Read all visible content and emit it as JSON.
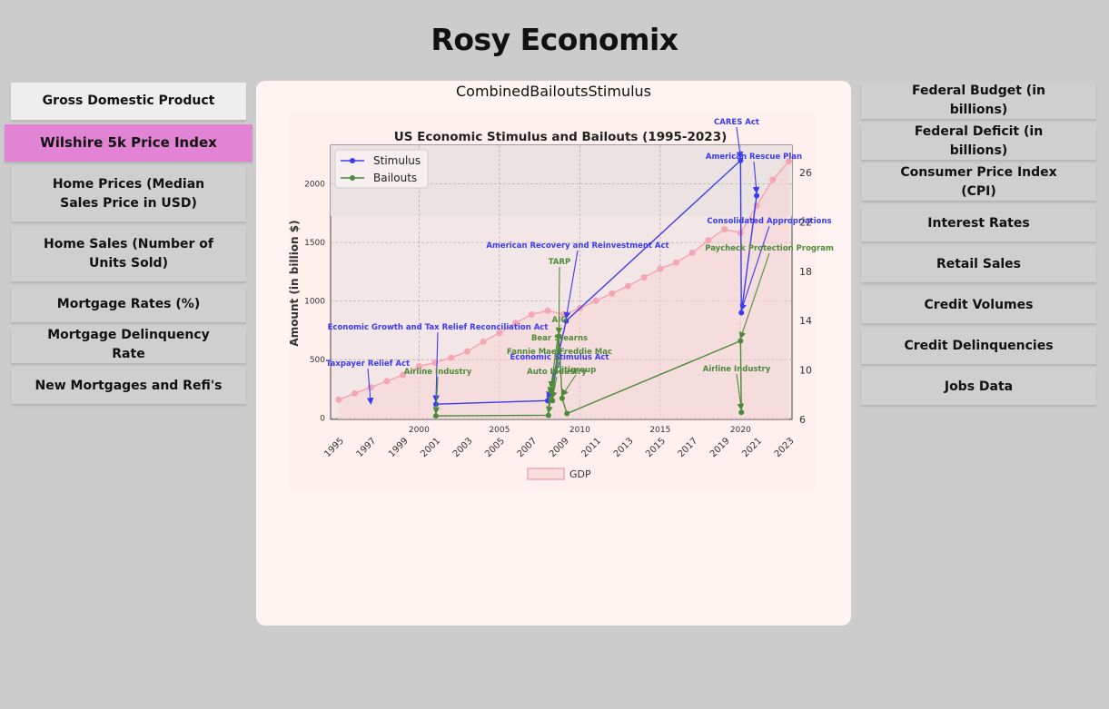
{
  "app": {
    "title": "Rosy Economix"
  },
  "left_nav": [
    "Gross Domestic Product",
    "Wilshire 5k Price Index",
    "Home Prices (Median Sales Price in USD)",
    "Home Sales (Number of Units Sold)",
    "Mortgage Rates (%)",
    "Mortgage Delinquency Rate",
    "New Mortgages and Refi's"
  ],
  "right_nav": [
    "Federal Budget (in billions)",
    "Federal Deficit (in billions)",
    "Consumer Price Index (CPI)",
    "Interest Rates",
    "Retail Sales",
    "Credit Volumes",
    "Credit Delinquencies",
    "Jobs Data"
  ],
  "panel": {
    "title": "CombinedBailoutsStimulus"
  },
  "chart_data": {
    "type": "line",
    "title": "US Economic Stimulus and Bailouts (1995-2023)",
    "ylabel": "Amount (in billion $)",
    "xlabel": "",
    "ylim": [
      -10,
      2330
    ],
    "xlim": [
      1994.5,
      2023.2
    ],
    "y2lim": [
      6,
      28.2
    ],
    "grid": true,
    "legend_position": "top-left",
    "bottom_x_ticks": [
      "1995",
      "1997",
      "1999",
      "2001",
      "2003",
      "2005",
      "2007",
      "2009",
      "2011",
      "2013",
      "2015",
      "2017",
      "2019",
      "2021",
      "2023"
    ],
    "top_x_ticks": [
      2000,
      2005,
      2010,
      2015,
      2020
    ],
    "y_ticks": [
      0,
      500,
      1000,
      1500,
      2000
    ],
    "y2_ticks": [
      6,
      10,
      14,
      18,
      22,
      26
    ],
    "series": [
      {
        "name": "Stimulus",
        "color": "#3b3bf0",
        "x": [
          2001.05,
          2008.0,
          2009.15,
          2020.0,
          2020.05,
          2021.0
        ],
        "y": [
          120,
          150,
          830,
          2200,
          900,
          1900
        ],
        "labels": [
          "Economic Growth and Tax Relief Reconciliation Act",
          "Economic Stimulus Act",
          "American Recovery and Reinvestment Act",
          "CARES Act",
          "Consolidated Appropriations",
          "American Rescue Plan"
        ]
      },
      {
        "name": "Bailouts",
        "color": "#4e8a3a",
        "x": [
          2001.05,
          2008.05,
          2008.1,
          2008.2,
          2008.3,
          2008.7,
          2008.9,
          2009.2,
          2020.0,
          2020.05
        ],
        "y": [
          20,
          25,
          190,
          240,
          150,
          700,
          170,
          40,
          660,
          50
        ],
        "labels": [
          "Airline Industry",
          "Bear Stearns",
          "Fannie Mae/Freddie Mac",
          "AIG",
          "Auto Industry",
          "TARP",
          "Citigroup",
          "Auto Industry",
          "Paycheck Protection Program",
          "Airline Industry"
        ]
      },
      {
        "name": "GDP",
        "color": "#f4a6b3",
        "type": "area",
        "axis": "y2",
        "x": [
          1995,
          1996,
          1997,
          1998,
          1999,
          2000,
          2001,
          2002,
          2003,
          2004,
          2005,
          2006,
          2007,
          2008,
          2009,
          2010,
          2011,
          2012,
          2013,
          2014,
          2015,
          2016,
          2017,
          2018,
          2019,
          2020,
          2021,
          2022,
          2023
        ],
        "y": [
          7.6,
          8.1,
          8.6,
          9.1,
          9.6,
          10.3,
          10.6,
          11.0,
          11.5,
          12.3,
          13.0,
          13.8,
          14.5,
          14.8,
          14.5,
          15.0,
          15.6,
          16.2,
          16.8,
          17.5,
          18.2,
          18.7,
          19.5,
          20.5,
          21.4,
          21.1,
          23.3,
          25.4,
          26.9
        ]
      }
    ],
    "annotations": [
      {
        "text": "Taxpayer Relief Act",
        "series": "Stimulus",
        "x": 1997.0,
        "y": 100
      },
      {
        "text": "Economic Growth and Tax Relief Reconciliation Act",
        "series": "Stimulus",
        "x": 2001.05,
        "y": 120
      },
      {
        "text": "American Recovery and Reinvestment Act",
        "series": "Stimulus",
        "x": 2009.15,
        "y": 830
      },
      {
        "text": "Economic Stimulus Act",
        "series": "Stimulus",
        "x": 2008.0,
        "y": 150
      },
      {
        "text": "CARES Act",
        "series": "Stimulus",
        "x": 2020.0,
        "y": 2200
      },
      {
        "text": "American Rescue Plan",
        "series": "Stimulus",
        "x": 2021.0,
        "y": 1900
      },
      {
        "text": "Consolidated Appropriations",
        "series": "Stimulus",
        "x": 2020.05,
        "y": 900
      },
      {
        "text": "Airline Industry",
        "series": "Bailouts",
        "x": 2001.05,
        "y": 20
      },
      {
        "text": "TARP",
        "series": "Bailouts",
        "x": 2008.7,
        "y": 700
      },
      {
        "text": "AIG",
        "series": "Bailouts",
        "x": 2008.2,
        "y": 240
      },
      {
        "text": "Bear Stearns",
        "series": "Bailouts",
        "x": 2008.05,
        "y": 25
      },
      {
        "text": "Fannie Mae/Freddie Mac",
        "series": "Bailouts",
        "x": 2008.1,
        "y": 190
      },
      {
        "text": "Auto Industry",
        "series": "Bailouts",
        "x": 2008.3,
        "y": 150
      },
      {
        "text": "Citigroup",
        "series": "Bailouts",
        "x": 2008.9,
        "y": 170
      },
      {
        "text": "Paycheck Protection Program",
        "series": "Bailouts",
        "x": 2020.0,
        "y": 660
      },
      {
        "text": "Airline Industry",
        "series": "Bailouts",
        "x": 2020.05,
        "y": 50
      }
    ]
  }
}
